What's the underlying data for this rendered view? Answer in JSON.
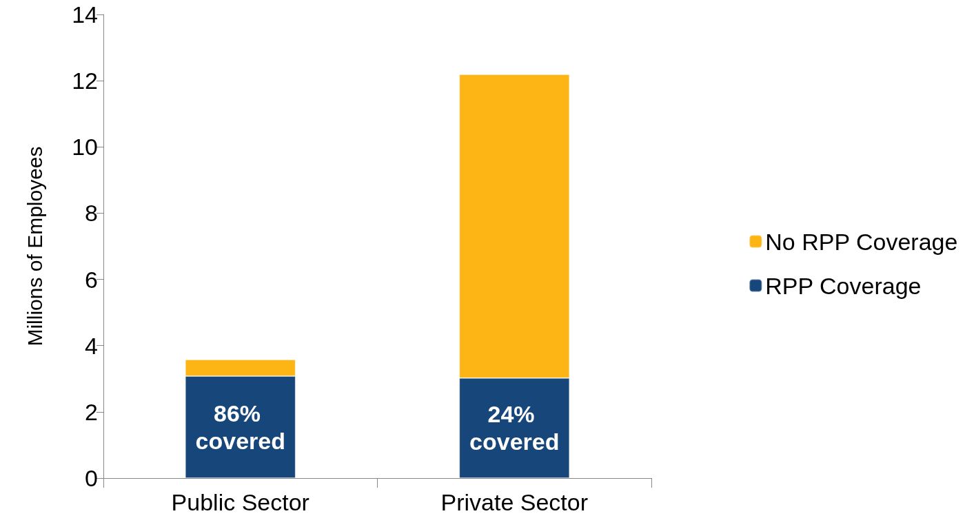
{
  "chart_data": {
    "type": "bar",
    "ylabel": "Millions of Employees",
    "categories": [
      "Public Sector",
      "Private Sector"
    ],
    "stacked": true,
    "series": [
      {
        "name": "RPP Coverage",
        "color": "#17477a",
        "values": [
          3.08,
          3.02
        ]
      },
      {
        "name": "No RPP Coverage",
        "color": "#fcb515",
        "values": [
          0.5,
          9.17
        ]
      }
    ],
    "ylim": [
      0,
      14
    ],
    "yticks": [
      0,
      2,
      4,
      6,
      8,
      10,
      12,
      14
    ],
    "grid": false,
    "legend": "right",
    "annotations": [
      "86% covered",
      "24% covered"
    ]
  }
}
